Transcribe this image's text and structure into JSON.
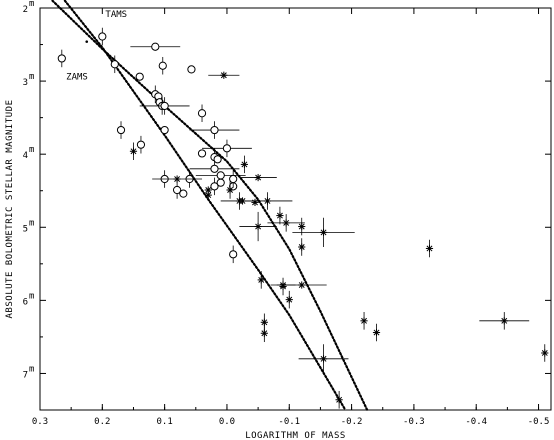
{
  "chart_data": {
    "type": "scatter",
    "title": "",
    "xlabel": "LOGARITHM OF MASS",
    "ylabel": "ABSOLUTE BOLOMETRIC STELLAR MAGNITUDE",
    "xlim": [
      0.3,
      -0.52
    ],
    "ylim": [
      7.5,
      2.0
    ],
    "x_reversed": true,
    "y_reversed": true,
    "x_ticks": [
      0.3,
      0.2,
      0.1,
      0.0,
      -0.1,
      -0.2,
      -0.3,
      -0.4,
      -0.5
    ],
    "x_tick_labels": [
      "0.3",
      "0.2",
      "0.1",
      "0.0",
      "-0.1",
      "-0.2",
      "-0.3",
      "-0.4",
      "-0.5"
    ],
    "y_ticks": [
      2,
      3,
      4,
      5,
      6,
      7
    ],
    "y_tick_labels": [
      "2",
      "3",
      "4",
      "5",
      "6",
      "7"
    ],
    "y_tick_superscript": "m",
    "grid": false,
    "curves": [
      {
        "name": "TAMS",
        "style": "dotted",
        "points": [
          [
            0.28,
            1.9
          ],
          [
            0.2,
            2.56
          ],
          [
            0.1,
            3.34
          ],
          [
            0.0,
            4.1
          ],
          [
            -0.05,
            4.62
          ],
          [
            -0.1,
            5.3
          ],
          [
            -0.15,
            6.15
          ],
          [
            -0.2,
            7.05
          ],
          [
            -0.225,
            7.5
          ]
        ]
      },
      {
        "name": "ZAMS",
        "style": "dotted",
        "points": [
          [
            0.26,
            1.9
          ],
          [
            0.2,
            2.54
          ],
          [
            0.1,
            3.74
          ],
          [
            0.03,
            4.62
          ],
          [
            0.0,
            4.98
          ],
          [
            -0.05,
            5.58
          ],
          [
            -0.1,
            6.2
          ],
          [
            -0.15,
            6.92
          ],
          [
            -0.19,
            7.5
          ]
        ]
      }
    ],
    "series": [
      {
        "marker": "circle",
        "points": [
          {
            "x": 0.265,
            "y": 2.69,
            "dy": 0.12
          },
          {
            "x": 0.2,
            "y": 2.39,
            "dy": 0.12
          },
          {
            "x": 0.18,
            "y": 2.77,
            "dy": 0.12
          },
          {
            "x": 0.14,
            "y": 2.94
          },
          {
            "x": 0.115,
            "y": 2.53,
            "dx": 0.04
          },
          {
            "x": 0.115,
            "y": 3.18,
            "dy": 0.12
          },
          {
            "x": 0.11,
            "y": 3.21
          },
          {
            "x": 0.108,
            "y": 3.29
          },
          {
            "x": 0.104,
            "y": 3.34,
            "dy": 0.12
          },
          {
            "x": 0.103,
            "y": 2.79,
            "dy": 0.12
          },
          {
            "x": 0.1,
            "y": 3.34,
            "dx": 0.04,
            "dy": 0.12
          },
          {
            "x": 0.057,
            "y": 2.84
          },
          {
            "x": 0.1,
            "y": 3.67
          },
          {
            "x": 0.17,
            "y": 3.67,
            "dy": 0.12
          },
          {
            "x": 0.138,
            "y": 3.87,
            "dy": 0.12
          },
          {
            "x": 0.04,
            "y": 3.44,
            "dy": 0.12
          },
          {
            "x": 0.04,
            "y": 3.99
          },
          {
            "x": 0.02,
            "y": 3.67,
            "dx": 0.04,
            "dy": 0.12
          },
          {
            "x": 0.02,
            "y": 4.04,
            "dy": 0.12
          },
          {
            "x": 0.1,
            "y": 4.34,
            "dy": 0.12
          },
          {
            "x": 0.08,
            "y": 4.49,
            "dy": 0.12
          },
          {
            "x": 0.07,
            "y": 4.54
          },
          {
            "x": 0.06,
            "y": 4.34,
            "dy": 0.12
          },
          {
            "x": 0.02,
            "y": 4.2,
            "dx": 0.04
          },
          {
            "x": 0.02,
            "y": 4.44,
            "dy": 0.12
          },
          {
            "x": 0.01,
            "y": 4.29,
            "dx": 0.04
          },
          {
            "x": 0.01,
            "y": 4.39
          },
          {
            "x": 0.0,
            "y": 3.92,
            "dx": 0.04,
            "dy": 0.12
          },
          {
            "x": -0.01,
            "y": 4.44
          },
          {
            "x": -0.01,
            "y": 4.34,
            "dy": 0.12
          },
          {
            "x": -0.01,
            "y": 5.37,
            "dy": 0.12
          },
          {
            "x": 0.015,
            "y": 4.07
          }
        ]
      },
      {
        "marker": "asterisk",
        "points": [
          {
            "x": 0.15,
            "y": 3.96,
            "dy": 0.12
          },
          {
            "x": 0.08,
            "y": 4.34,
            "dx": 0.04
          },
          {
            "x": 0.03,
            "y": 4.49
          },
          {
            "x": 0.03,
            "y": 4.56
          },
          {
            "x": 0.005,
            "y": 2.92,
            "dx": 0.025
          },
          {
            "x": -0.005,
            "y": 4.49,
            "dy": 0.12
          },
          {
            "x": -0.02,
            "y": 4.64,
            "dx": 0.03,
            "dy": 0.12
          },
          {
            "x": -0.025,
            "y": 4.64
          },
          {
            "x": -0.028,
            "y": 4.14,
            "dy": 0.12
          },
          {
            "x": -0.045,
            "y": 4.66
          },
          {
            "x": -0.05,
            "y": 4.99,
            "dx": 0.03,
            "dy": 0.2
          },
          {
            "x": -0.055,
            "y": 5.72,
            "dy": 0.12
          },
          {
            "x": -0.065,
            "y": 4.64,
            "dx": 0.04,
            "dy": 0.12
          },
          {
            "x": -0.085,
            "y": 4.84,
            "dy": 0.12
          },
          {
            "x": -0.09,
            "y": 5.79,
            "dx": 0.02
          },
          {
            "x": -0.095,
            "y": 4.94,
            "dx": 0.03,
            "dy": 0.12
          },
          {
            "x": -0.09,
            "y": 5.81,
            "dy": 0.12
          },
          {
            "x": -0.1,
            "y": 5.99,
            "dy": 0.12
          },
          {
            "x": -0.05,
            "y": 4.32,
            "dx": 0.03
          },
          {
            "x": -0.12,
            "y": 5.79,
            "dx": 0.04
          },
          {
            "x": -0.12,
            "y": 4.99,
            "dy": 0.12
          },
          {
            "x": -0.12,
            "y": 5.27,
            "dy": 0.12
          },
          {
            "x": -0.155,
            "y": 5.07,
            "dx": 0.05,
            "dy": 0.2
          },
          {
            "x": -0.155,
            "y": 6.8,
            "dx": 0.04,
            "dy": 0.2
          },
          {
            "x": -0.18,
            "y": 7.36,
            "dy": 0.12
          },
          {
            "x": -0.22,
            "y": 6.28,
            "dy": 0.12
          },
          {
            "x": -0.24,
            "y": 6.44,
            "dy": 0.12
          },
          {
            "x": -0.325,
            "y": 5.29,
            "dy": 0.12
          },
          {
            "x": -0.445,
            "y": 6.28,
            "dx": 0.04,
            "dy": 0.12
          },
          {
            "x": -0.51,
            "y": 6.72,
            "dy": 0.12
          },
          {
            "x": -0.06,
            "y": 6.3,
            "dy": 0.12
          },
          {
            "x": -0.06,
            "y": 6.45,
            "dy": 0.12
          }
        ]
      }
    ]
  }
}
